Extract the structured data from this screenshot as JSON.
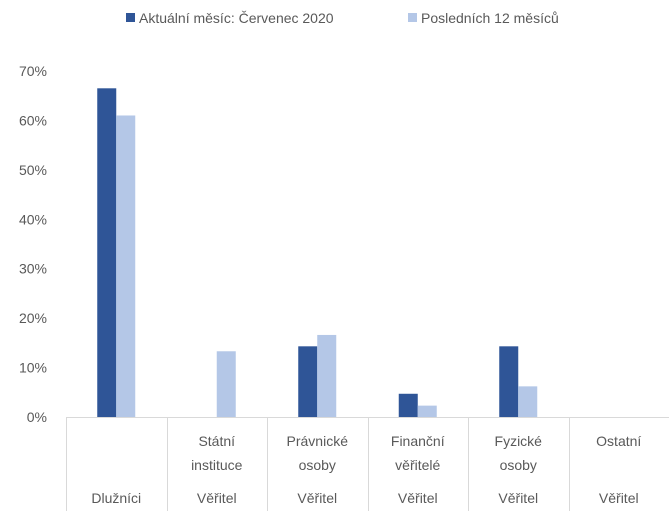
{
  "chart_data": {
    "type": "bar",
    "categories": [
      {
        "lines": [
          "Dlužníci"
        ],
        "group": ""
      },
      {
        "lines": [
          "Státní",
          "instituce"
        ],
        "group": "Věřitel"
      },
      {
        "lines": [
          "Právnické",
          "osoby"
        ],
        "group": "Věřitel"
      },
      {
        "lines": [
          "Finanční",
          "věřitelé"
        ],
        "group": "Věřitel"
      },
      {
        "lines": [
          "Fyzické",
          "osoby"
        ],
        "group": "Věřitel"
      },
      {
        "lines": [
          "Ostatní"
        ],
        "group": "Věřitel"
      }
    ],
    "series": [
      {
        "name": "Aktuální měsíc: Červenec 2020",
        "color": "#2f5597",
        "values": [
          66.5,
          0,
          14.3,
          4.7,
          14.3,
          0
        ]
      },
      {
        "name": "Posledních 12 měsíců",
        "color": "#b4c7e7",
        "values": [
          61.0,
          13.3,
          16.6,
          2.3,
          6.2,
          0
        ]
      }
    ],
    "ylim": [
      0,
      70
    ],
    "yticks": [
      "0%",
      "10%",
      "20%",
      "30%",
      "40%",
      "50%",
      "60%",
      "70%"
    ],
    "grid": false,
    "legend": "top-center"
  }
}
